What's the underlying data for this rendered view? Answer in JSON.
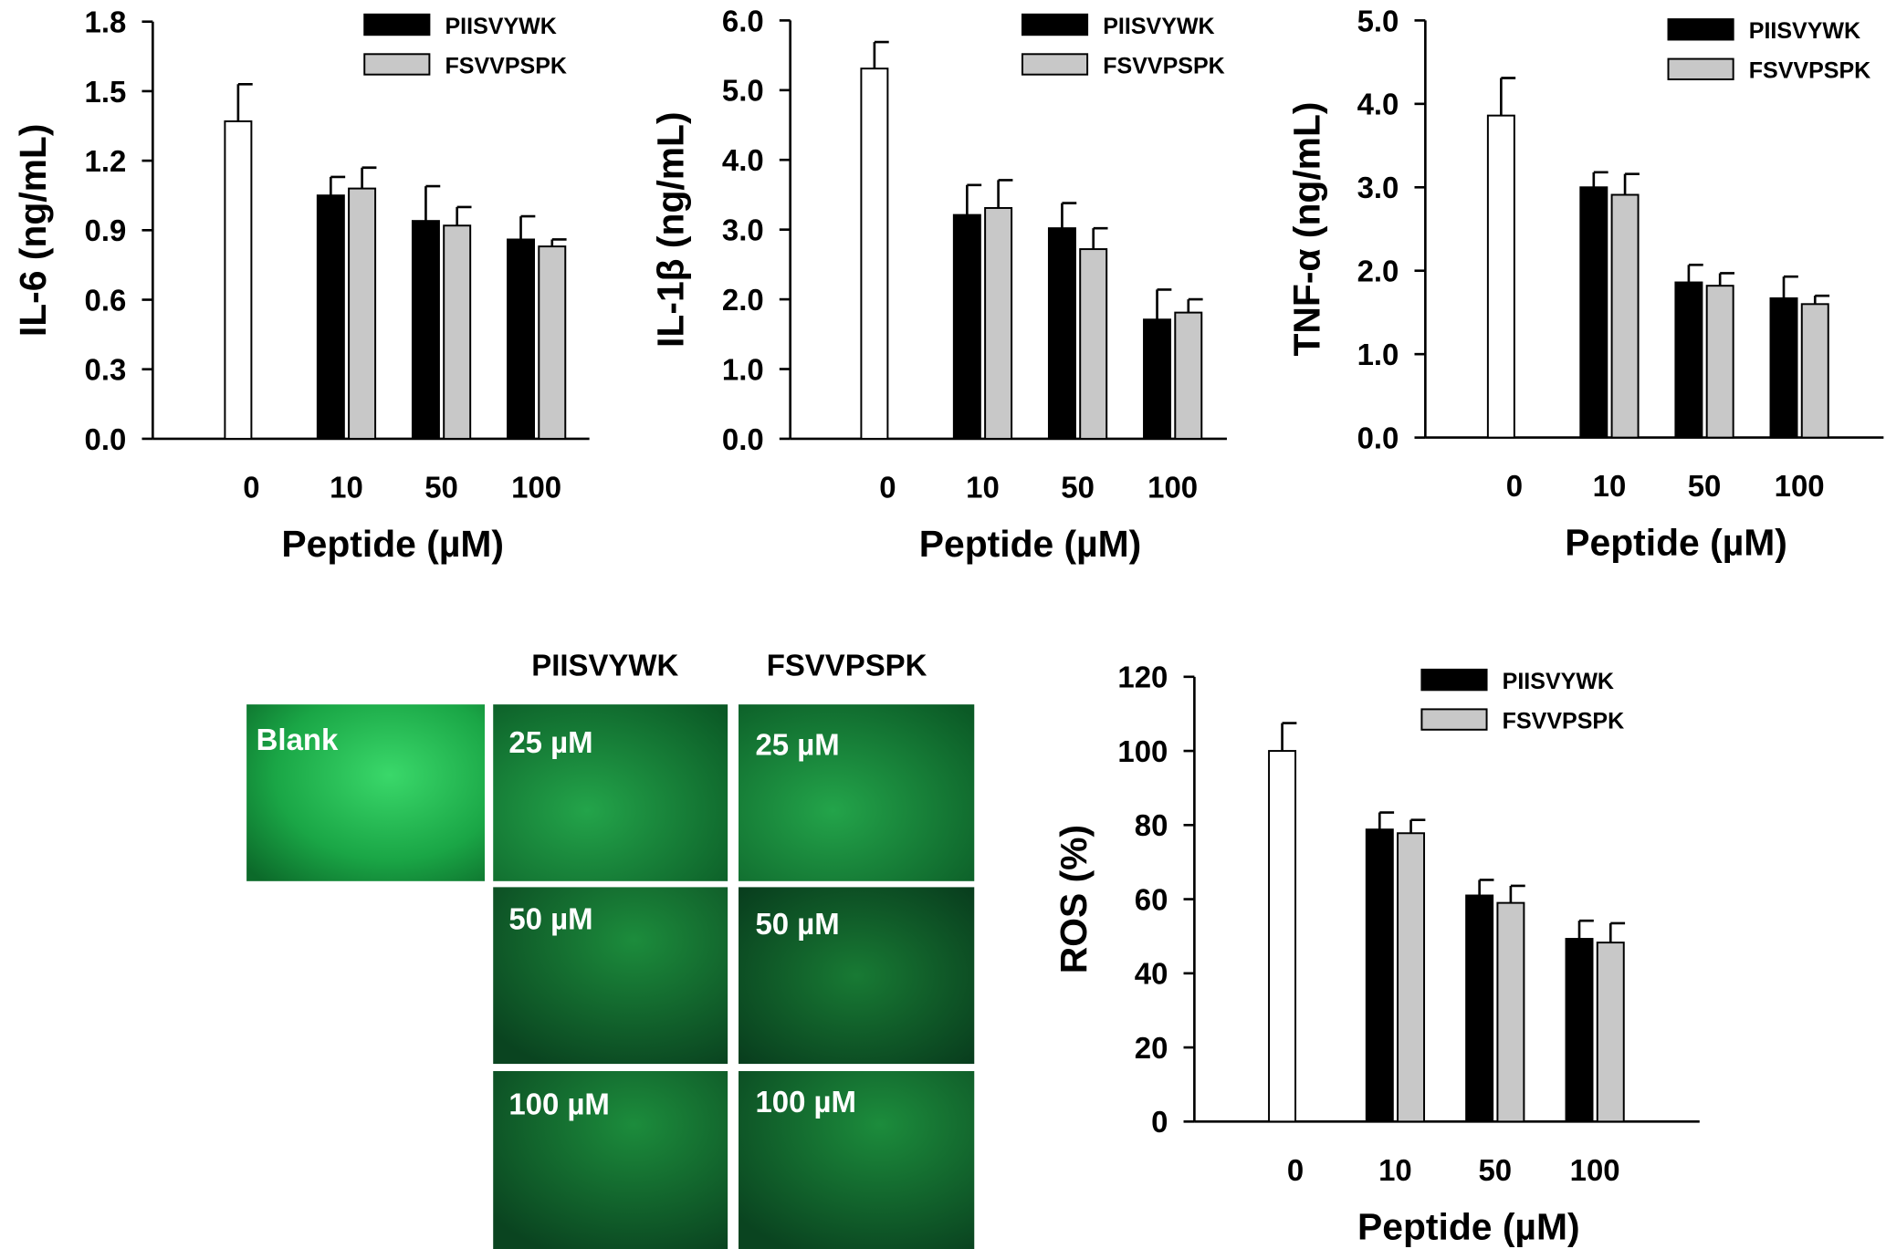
{
  "chart_data": [
    {
      "type": "bar",
      "y_label": "IL-6 (ng/mL)",
      "x_label": "Peptide (µM)",
      "categories": [
        "0",
        "10",
        "50",
        "100"
      ],
      "baseline": {
        "value": 1.37,
        "error": 0.16,
        "color": "#ffffff"
      },
      "series": [
        {
          "name": "PIISVYWK",
          "color": "#000000",
          "values": [
            null,
            1.05,
            0.94,
            0.86
          ],
          "errors": [
            null,
            0.08,
            0.15,
            0.1
          ]
        },
        {
          "name": "FSVVPSPK",
          "color": "#c8c8c8",
          "values": [
            null,
            1.08,
            0.92,
            0.83
          ],
          "errors": [
            null,
            0.09,
            0.08,
            0.03
          ]
        }
      ],
      "ylim": [
        0,
        1.8
      ],
      "yticks": [
        {
          "value": 0,
          "label": "0.0"
        },
        0.3,
        0.6,
        0.9,
        1.2,
        1.5,
        1.8
      ],
      "legend": "upper right"
    },
    {
      "type": "bar",
      "y_label": "IL-1β (ng/mL)",
      "x_label": "Peptide (µM)",
      "categories": [
        "0",
        "10",
        "50",
        "100"
      ],
      "baseline": {
        "value": 5.31,
        "error": 0.38,
        "color": "#ffffff"
      },
      "series": [
        {
          "name": "PIISVYWK",
          "color": "#000000",
          "values": [
            null,
            3.21,
            3.02,
            1.71
          ],
          "errors": [
            null,
            0.43,
            0.36,
            0.43
          ]
        },
        {
          "name": "FSVVPSPK",
          "color": "#c8c8c8",
          "values": [
            null,
            3.31,
            2.72,
            1.81
          ],
          "errors": [
            null,
            0.4,
            0.3,
            0.19
          ]
        }
      ],
      "ylim": [
        0,
        6
      ],
      "yticks": [
        {
          "value": 0,
          "label": "0.0"
        },
        {
          "value": 1,
          "label": "1.0"
        },
        {
          "value": 2,
          "label": "2.0"
        },
        {
          "value": 3,
          "label": "3.0"
        },
        {
          "value": 4,
          "label": "4.0"
        },
        {
          "value": 5,
          "label": "5.0"
        },
        {
          "value": 6,
          "label": "6.0"
        }
      ],
      "legend": "upper right"
    },
    {
      "type": "bar",
      "y_label": "TNF-α (ng/mL)",
      "x_label": "Peptide (µM)",
      "categories": [
        "0",
        "10",
        "50",
        "100"
      ],
      "baseline": {
        "value": 3.86,
        "error": 0.45,
        "color": "#ffffff"
      },
      "series": [
        {
          "name": "PIISVYWK",
          "color": "#000000",
          "values": [
            null,
            3.0,
            1.86,
            1.67
          ],
          "errors": [
            null,
            0.18,
            0.21,
            0.26
          ]
        },
        {
          "name": "FSVVPSPK",
          "color": "#c8c8c8",
          "values": [
            null,
            2.91,
            1.82,
            1.6
          ],
          "errors": [
            null,
            0.25,
            0.15,
            0.1
          ]
        }
      ],
      "ylim": [
        0,
        5
      ],
      "yticks": [
        {
          "value": 0,
          "label": "0.0"
        },
        {
          "value": 1,
          "label": "1.0"
        },
        {
          "value": 2,
          "label": "2.0"
        },
        {
          "value": 3,
          "label": "3.0"
        },
        {
          "value": 4,
          "label": "4.0"
        },
        {
          "value": 5,
          "label": "5.0"
        }
      ],
      "legend": "upper right"
    },
    {
      "type": "bar",
      "y_label": "ROS (%)",
      "x_label": "Peptide (µM)",
      "categories": [
        "0",
        "10",
        "50",
        "100"
      ],
      "baseline": {
        "value": 100,
        "error": 7.5,
        "color": "#ffffff"
      },
      "series": [
        {
          "name": "PIISVYWK",
          "color": "#000000",
          "values": [
            null,
            78.8,
            61,
            49.3
          ],
          "errors": [
            null,
            4.6,
            4.2,
            4.9
          ]
        },
        {
          "name": "FSVVPSPK",
          "color": "#c8c8c8",
          "values": [
            null,
            77.8,
            59,
            48.3
          ],
          "errors": [
            null,
            3.6,
            4.6,
            5.2
          ]
        }
      ],
      "ylim": [
        0,
        120
      ],
      "yticks": [
        0,
        20,
        40,
        60,
        80,
        100,
        120
      ],
      "legend": "upper right"
    }
  ],
  "micrographs": {
    "column_headers": [
      "PIISVYWK",
      "FSVVPSPK"
    ],
    "panels": [
      "Blank",
      "25 µM",
      "25 µM",
      "50 µM",
      "50 µM",
      "100 µM",
      "100 µM"
    ]
  }
}
